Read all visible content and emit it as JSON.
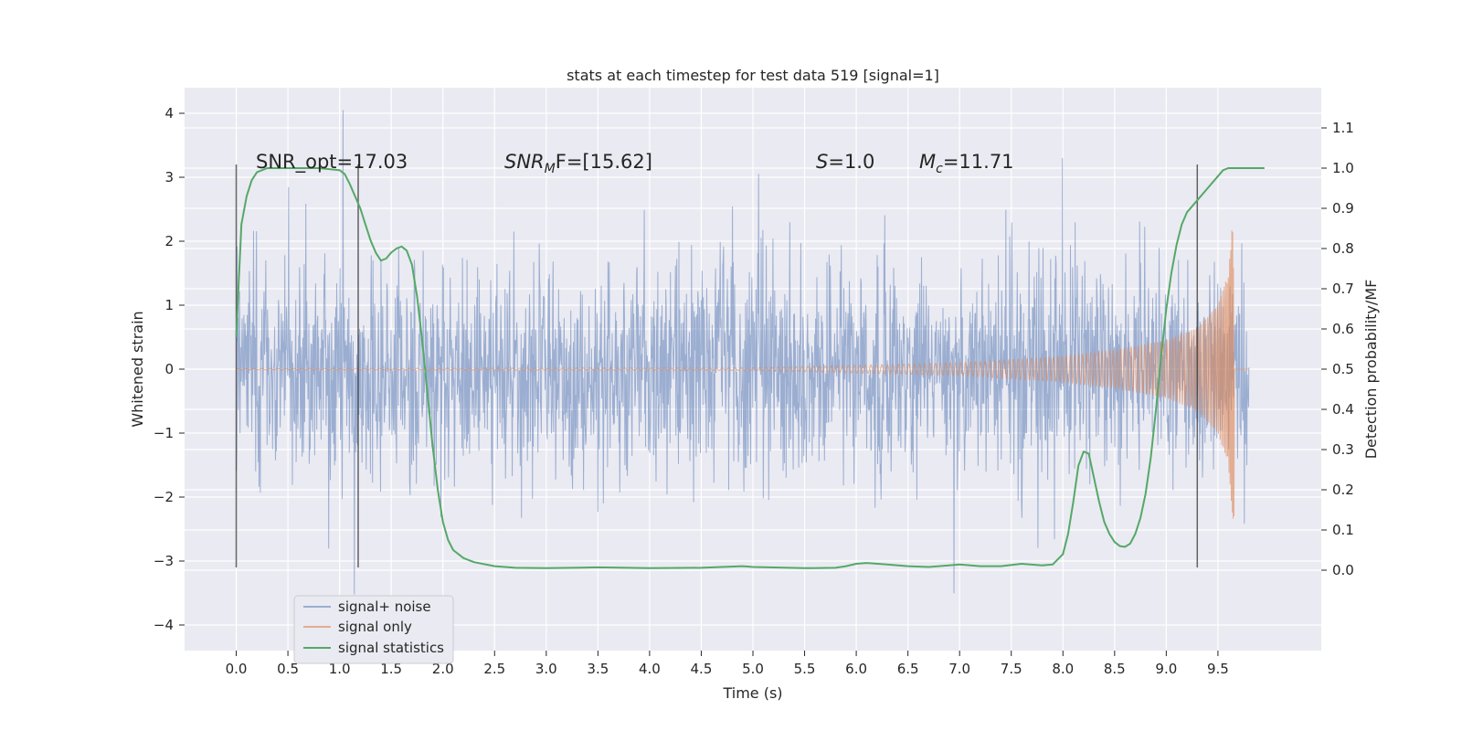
{
  "chart_data": {
    "type": "line",
    "title": "stats at each timestep for test data 519 [signal=1]",
    "xlabel": "Time (s)",
    "ylabel": "Whitened strain",
    "ylabel_right": "Detection probability/MF",
    "xlim": [
      -0.5,
      10.5
    ],
    "ylim": [
      -4.4,
      4.4
    ],
    "ylim_right": [
      -0.2,
      1.2
    ],
    "x_ticks": [
      0.0,
      0.5,
      1.0,
      1.5,
      2.0,
      2.5,
      3.0,
      3.5,
      4.0,
      4.5,
      5.0,
      5.5,
      6.0,
      6.5,
      7.0,
      7.5,
      8.0,
      8.5,
      9.0,
      9.5
    ],
    "x_tick_labels": [
      "0.0",
      "0.5",
      "1.0",
      "1.5",
      "2.0",
      "2.5",
      "3.0",
      "3.5",
      "4.0",
      "4.5",
      "5.0",
      "5.5",
      "6.0",
      "6.5",
      "7.0",
      "7.5",
      "8.0",
      "8.5",
      "9.0",
      "9.5"
    ],
    "y_ticks": [
      -4,
      -3,
      -2,
      -1,
      0,
      1,
      2,
      3,
      4
    ],
    "y_tick_labels": [
      "−4",
      "−3",
      "−2",
      "−1",
      "0",
      "1",
      "2",
      "3",
      "4"
    ],
    "y2_ticks": [
      0.0,
      0.1,
      0.2,
      0.3,
      0.4,
      0.5,
      0.6,
      0.7,
      0.8,
      0.9,
      1.0,
      1.1
    ],
    "y2_tick_labels": [
      "0.0",
      "0.1",
      "0.2",
      "0.3",
      "0.4",
      "0.5",
      "0.6",
      "0.7",
      "0.8",
      "0.9",
      "1.0",
      "1.1"
    ],
    "grid": true,
    "legend_position": "lower-left",
    "series": [
      {
        "name": "signal+ noise",
        "color": "#4c72b0",
        "axis": "left",
        "x_range": [
          0.0,
          9.8
        ],
        "typical_envelope": [
          -1.3,
          1.3
        ],
        "approx_extremes": [
          -3.9,
          4.05
        ]
      },
      {
        "name": "signal only",
        "color": "#dd8452",
        "axis": "left",
        "x_range": [
          0.0,
          9.65
        ],
        "chirp_envelope": [
          [
            0.0,
            0.01
          ],
          [
            5.0,
            0.02
          ],
          [
            6.0,
            0.06
          ],
          [
            7.0,
            0.1
          ],
          [
            8.0,
            0.2
          ],
          [
            8.5,
            0.3
          ],
          [
            9.0,
            0.45
          ],
          [
            9.3,
            0.65
          ],
          [
            9.5,
            1.0
          ],
          [
            9.6,
            1.5
          ],
          [
            9.65,
            2.5
          ]
        ]
      },
      {
        "name": "signal statistics",
        "color": "#55a868",
        "axis": "right",
        "points": [
          [
            0.0,
            0.58
          ],
          [
            0.05,
            0.86
          ],
          [
            0.1,
            0.93
          ],
          [
            0.15,
            0.97
          ],
          [
            0.2,
            0.99
          ],
          [
            0.3,
            1.0
          ],
          [
            0.5,
            1.0
          ],
          [
            0.8,
            1.0
          ],
          [
            1.0,
            0.995
          ],
          [
            1.05,
            0.985
          ],
          [
            1.1,
            0.96
          ],
          [
            1.15,
            0.93
          ],
          [
            1.2,
            0.9
          ],
          [
            1.25,
            0.86
          ],
          [
            1.3,
            0.82
          ],
          [
            1.35,
            0.79
          ],
          [
            1.4,
            0.77
          ],
          [
            1.45,
            0.775
          ],
          [
            1.5,
            0.79
          ],
          [
            1.55,
            0.8
          ],
          [
            1.6,
            0.805
          ],
          [
            1.65,
            0.795
          ],
          [
            1.7,
            0.76
          ],
          [
            1.75,
            0.68
          ],
          [
            1.8,
            0.57
          ],
          [
            1.85,
            0.44
          ],
          [
            1.9,
            0.31
          ],
          [
            1.95,
            0.2
          ],
          [
            2.0,
            0.12
          ],
          [
            2.05,
            0.075
          ],
          [
            2.1,
            0.05
          ],
          [
            2.2,
            0.03
          ],
          [
            2.3,
            0.02
          ],
          [
            2.5,
            0.01
          ],
          [
            2.7,
            0.006
          ],
          [
            3.0,
            0.005
          ],
          [
            3.5,
            0.007
          ],
          [
            4.0,
            0.005
          ],
          [
            4.5,
            0.006
          ],
          [
            4.9,
            0.01
          ],
          [
            5.0,
            0.008
          ],
          [
            5.5,
            0.005
          ],
          [
            5.8,
            0.006
          ],
          [
            5.9,
            0.01
          ],
          [
            6.0,
            0.016
          ],
          [
            6.1,
            0.018
          ],
          [
            6.3,
            0.014
          ],
          [
            6.5,
            0.01
          ],
          [
            6.7,
            0.008
          ],
          [
            6.8,
            0.01
          ],
          [
            7.0,
            0.014
          ],
          [
            7.2,
            0.01
          ],
          [
            7.4,
            0.01
          ],
          [
            7.6,
            0.016
          ],
          [
            7.8,
            0.012
          ],
          [
            7.9,
            0.014
          ],
          [
            8.0,
            0.04
          ],
          [
            8.05,
            0.09
          ],
          [
            8.1,
            0.17
          ],
          [
            8.15,
            0.26
          ],
          [
            8.2,
            0.295
          ],
          [
            8.25,
            0.29
          ],
          [
            8.3,
            0.23
          ],
          [
            8.35,
            0.17
          ],
          [
            8.4,
            0.12
          ],
          [
            8.45,
            0.09
          ],
          [
            8.5,
            0.07
          ],
          [
            8.55,
            0.06
          ],
          [
            8.6,
            0.058
          ],
          [
            8.65,
            0.066
          ],
          [
            8.7,
            0.09
          ],
          [
            8.75,
            0.13
          ],
          [
            8.8,
            0.19
          ],
          [
            8.85,
            0.28
          ],
          [
            8.9,
            0.4
          ],
          [
            8.95,
            0.53
          ],
          [
            9.0,
            0.65
          ],
          [
            9.05,
            0.74
          ],
          [
            9.1,
            0.81
          ],
          [
            9.15,
            0.86
          ],
          [
            9.2,
            0.89
          ],
          [
            9.3,
            0.92
          ],
          [
            9.4,
            0.95
          ],
          [
            9.5,
            0.98
          ],
          [
            9.55,
            0.995
          ],
          [
            9.6,
            1.0
          ],
          [
            9.95,
            1.0
          ]
        ]
      }
    ],
    "vertical_markers": [
      {
        "x": 0.0,
        "y": [
          -3.1,
          3.2
        ]
      },
      {
        "x": 1.18,
        "y": [
          -3.1,
          3.2
        ]
      },
      {
        "x": 9.3,
        "y": [
          -3.1,
          3.2
        ]
      }
    ],
    "annotations": [
      {
        "text": "SNR_opt=17.03"
      },
      {
        "base": "SNR",
        "sub": "M",
        "rest": "F=[15.62]"
      },
      {
        "base": "S",
        "rest": "=1.0"
      },
      {
        "base": "M",
        "sub": "c",
        "rest": "=11.71"
      }
    ],
    "legend": [
      "signal+ noise",
      "signal only",
      "signal statistics"
    ]
  }
}
